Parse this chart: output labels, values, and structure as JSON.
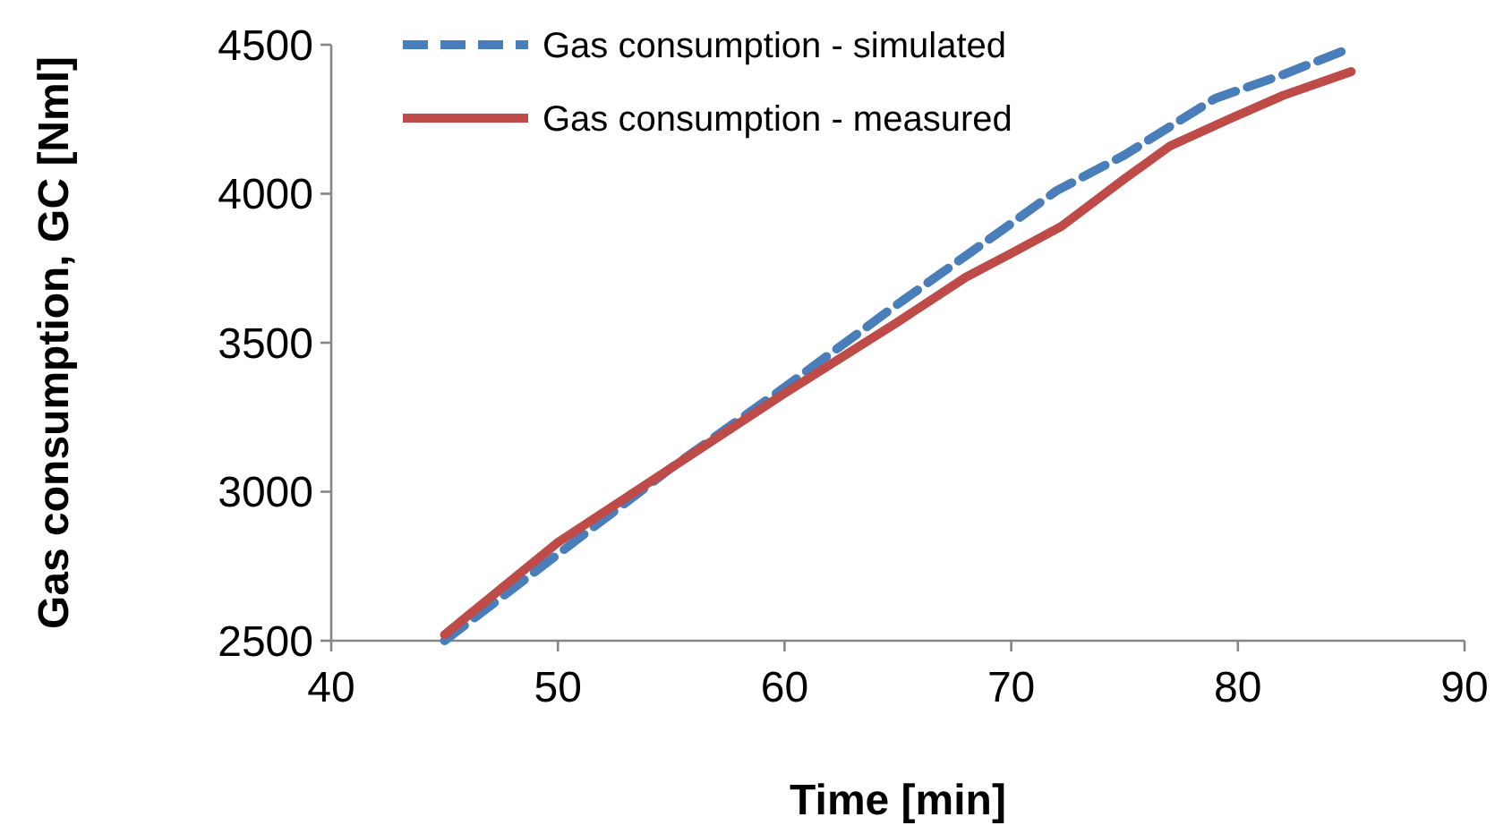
{
  "chart_data": {
    "type": "line",
    "xlabel": "Time [min]",
    "ylabel": "Gas consumption, GC [Nml]",
    "xlim": [
      40,
      90
    ],
    "xticks": [
      40,
      50,
      60,
      70,
      80,
      90
    ],
    "ylim": [
      2500,
      4500
    ],
    "yticks": [
      2500,
      3000,
      3500,
      4000,
      4500
    ],
    "grid": false,
    "legend": "top",
    "marker": "none",
    "series": [
      {
        "name": "Gas consumption - simulated",
        "color": "#4a7ebb",
        "line_style": "dashed",
        "x": [
          45,
          50,
          55,
          60,
          65,
          70,
          72,
          75,
          79,
          82,
          85
        ],
        "values": [
          2500,
          2790,
          3080,
          3350,
          3630,
          3900,
          4010,
          4130,
          4320,
          4400,
          4490
        ]
      },
      {
        "name": "Gas consumption - measured",
        "color": "#be4b48",
        "line_style": "solid",
        "x": [
          45,
          50,
          55,
          60,
          65,
          68,
          70,
          72.2,
          75,
          77,
          79.6,
          82,
          85
        ],
        "values": [
          2520,
          2830,
          3080,
          3330,
          3570,
          3720,
          3800,
          3890,
          4050,
          4160,
          4250,
          4330,
          4410
        ]
      }
    ]
  }
}
